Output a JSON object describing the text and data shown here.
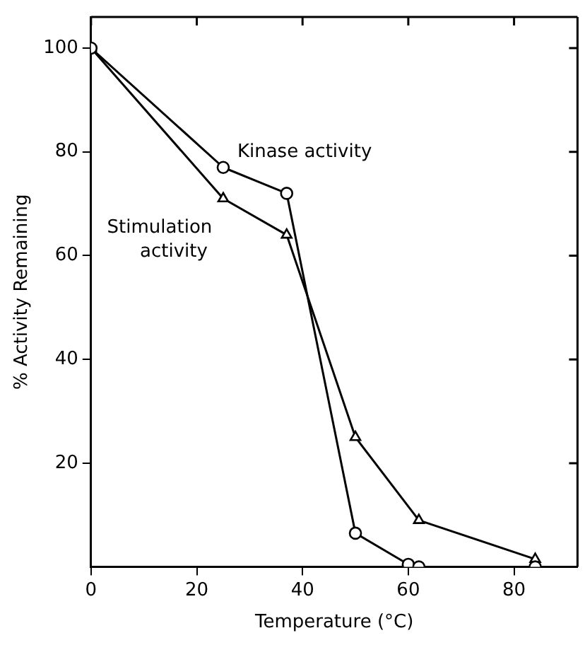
{
  "chart_data": {
    "type": "line",
    "xlabel": "Temperature (°C)",
    "ylabel": "% Activity Remaining",
    "xlim": [
      0,
      92
    ],
    "ylim": [
      0,
      106
    ],
    "xticks": [
      0,
      20,
      40,
      60,
      80
    ],
    "yticks": [
      20,
      40,
      60,
      80,
      100
    ],
    "grid": false,
    "legend": false,
    "line_style": "solid",
    "series": [
      {
        "name": "Kinase activity",
        "color": "#000000",
        "marker": "circle",
        "x": [
          0,
          25,
          37,
          50,
          60,
          62,
          84
        ],
        "values": [
          100,
          77,
          72,
          6.5,
          0.5,
          0,
          0
        ]
      },
      {
        "name": "Stimulation activity",
        "color": "#000000",
        "marker": "triangle",
        "x": [
          0,
          25,
          37,
          50,
          62,
          84
        ],
        "values": [
          100,
          71,
          64,
          25,
          9,
          1.5
        ]
      }
    ]
  }
}
